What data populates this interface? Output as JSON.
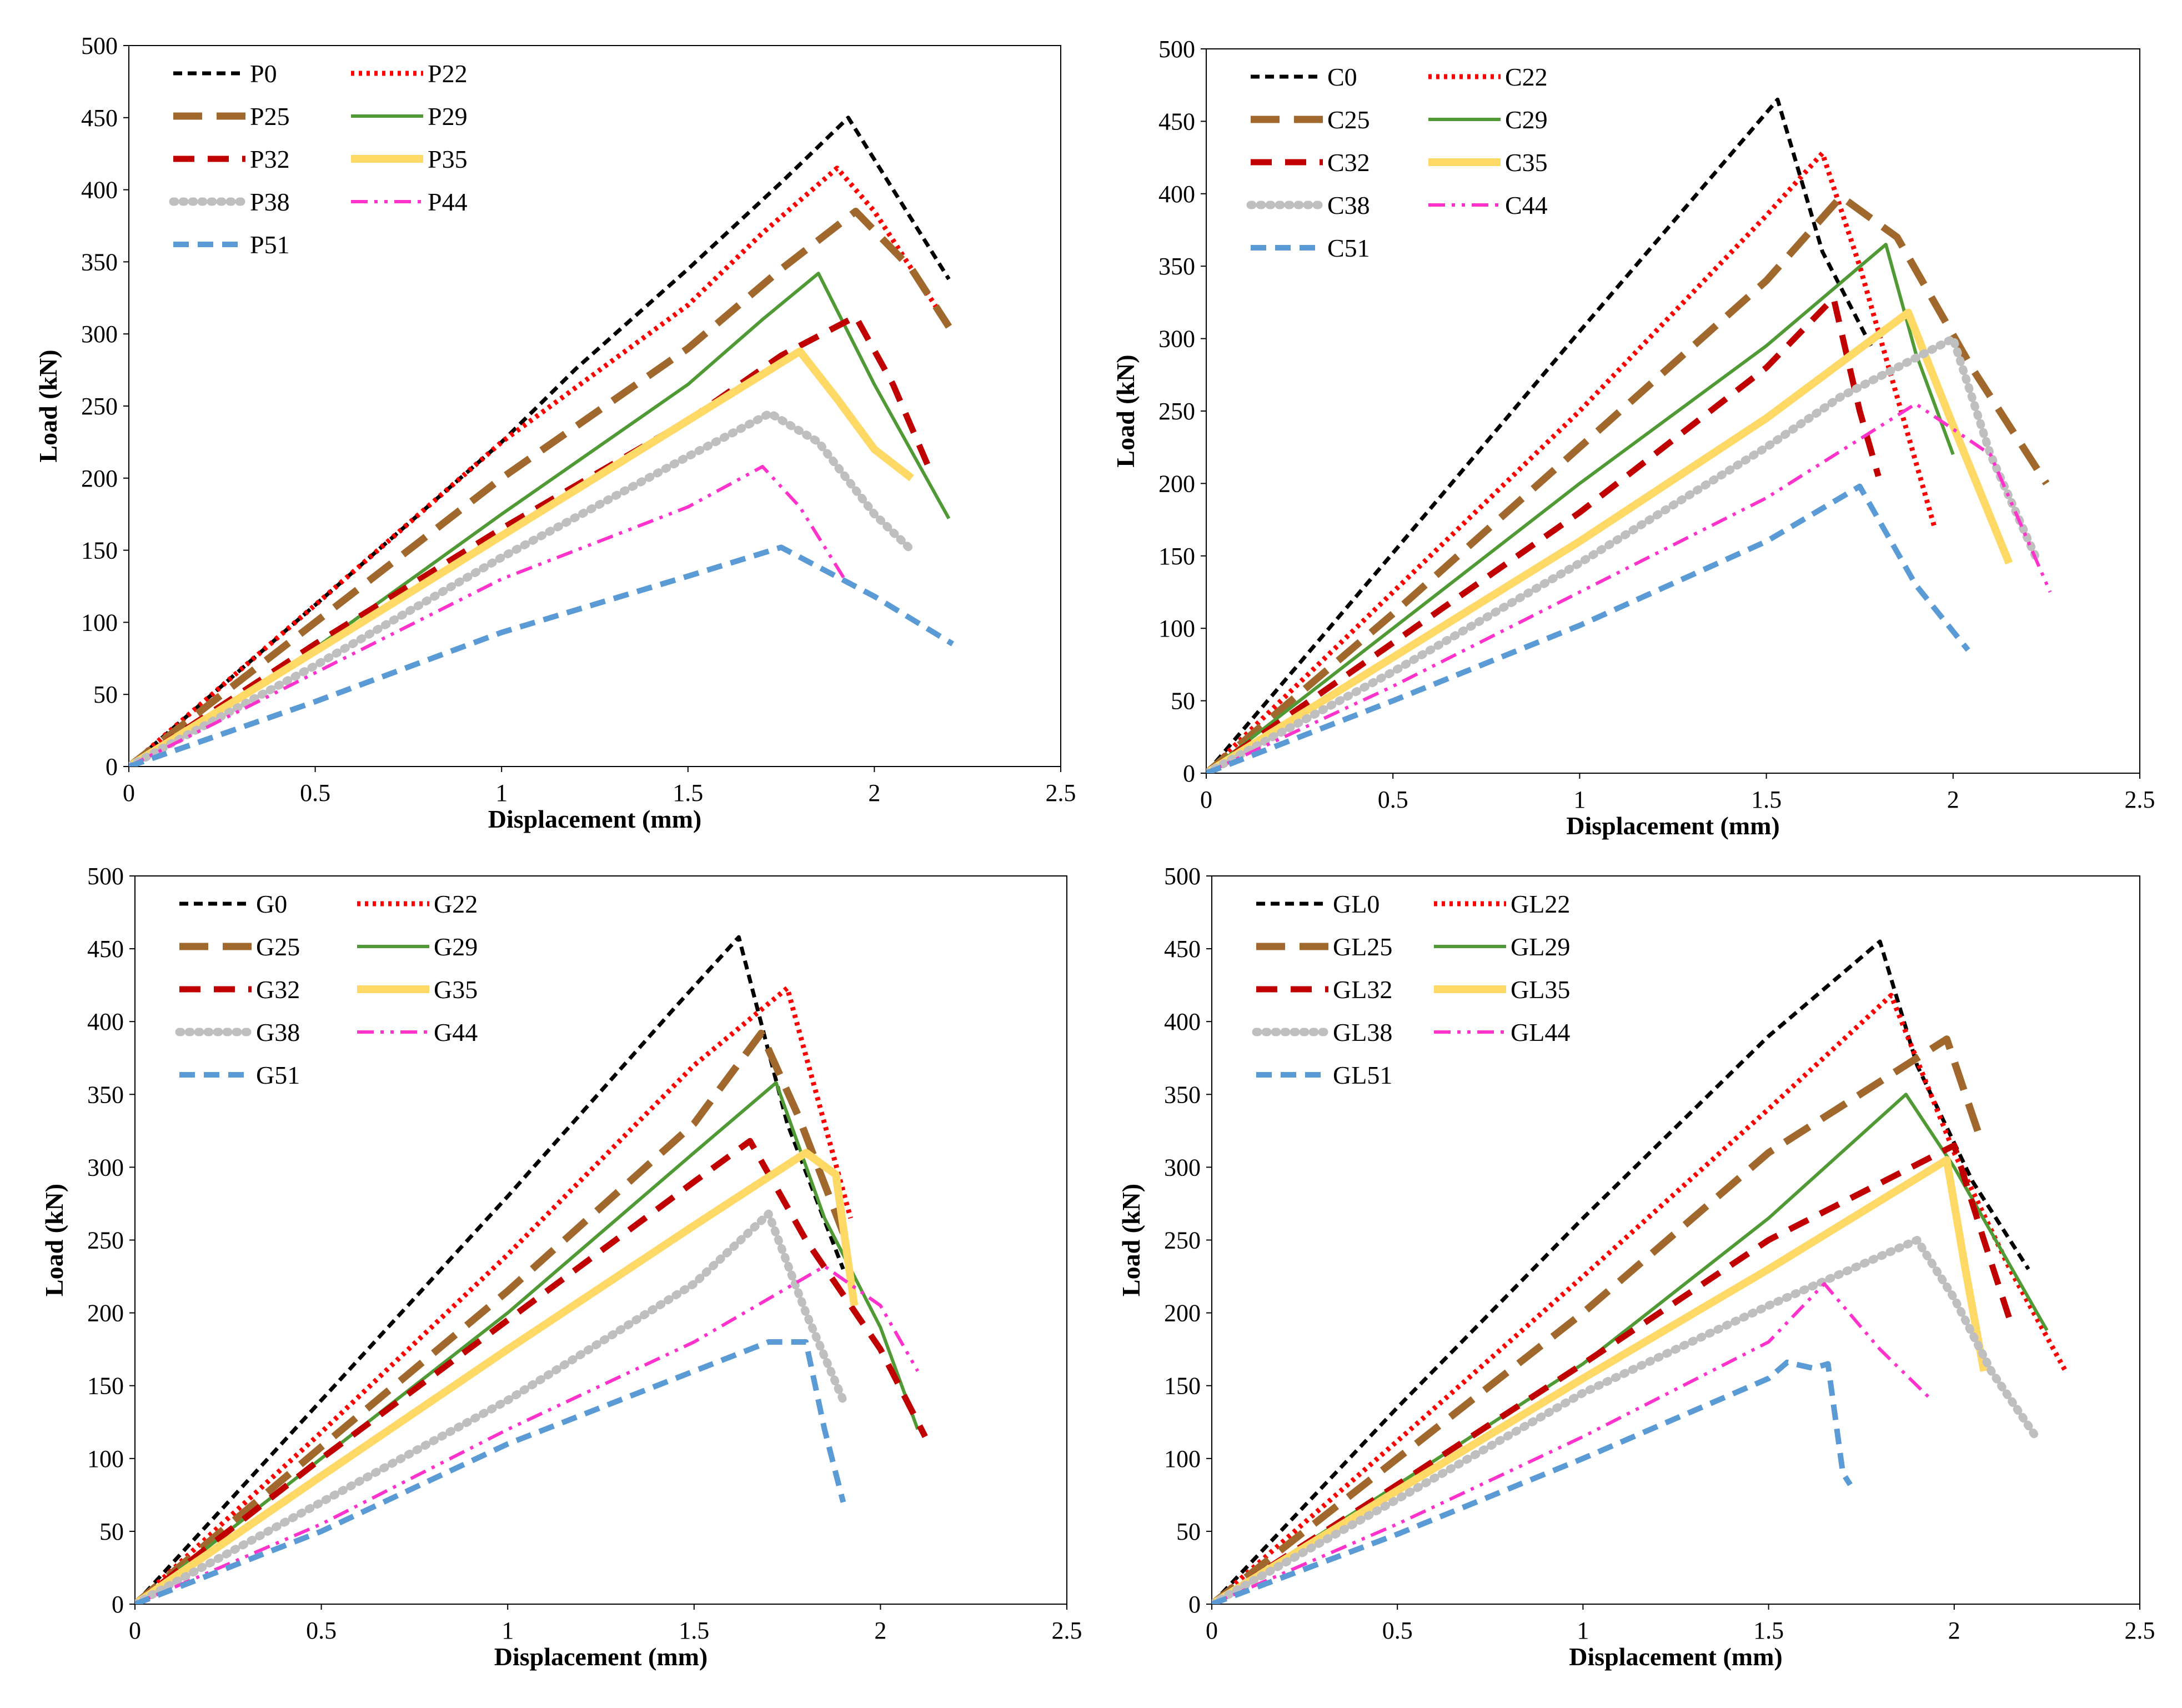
{
  "chart_data": [
    {
      "type": "line",
      "xlabel": "Displacement (mm)",
      "ylabel": "Load (kN)",
      "xlim": [
        0,
        2.5
      ],
      "ylim": [
        0,
        500
      ],
      "xticks": [
        "0",
        "0.5",
        "1",
        "1.5",
        "2",
        "2.5"
      ],
      "yticks": [
        "0",
        "50",
        "100",
        "150",
        "200",
        "250",
        "300",
        "350",
        "400",
        "450",
        "500"
      ],
      "grid": false,
      "legend_position": "top-left",
      "series": [
        {
          "name": "P0",
          "style": "p0",
          "x": [
            0,
            0.5,
            1,
            1.2,
            1.5,
            1.75,
            1.93,
            2.2
          ],
          "y": [
            0,
            112,
            225,
            276,
            345,
            405,
            450,
            338
          ]
        },
        {
          "name": "P22",
          "style": "p22",
          "x": [
            0,
            0.5,
            1,
            1.5,
            1.7,
            1.9,
            2.0,
            2.2
          ],
          "y": [
            0,
            112,
            225,
            320,
            370,
            415,
            385,
            305
          ]
        },
        {
          "name": "P25",
          "style": "p25",
          "x": [
            0,
            0.5,
            1,
            1.5,
            1.75,
            1.95,
            2.1,
            2.2
          ],
          "y": [
            0,
            100,
            200,
            290,
            345,
            385,
            345,
            305
          ]
        },
        {
          "name": "P29",
          "style": "p29",
          "x": [
            0,
            0.5,
            1,
            1.5,
            1.7,
            1.85,
            2.0,
            2.2
          ],
          "y": [
            0,
            82,
            175,
            265,
            310,
            342,
            265,
            172
          ]
        },
        {
          "name": "P32",
          "style": "p32",
          "x": [
            0,
            0.5,
            1,
            1.5,
            1.75,
            1.95,
            2.05,
            2.15
          ],
          "y": [
            0,
            85,
            165,
            240,
            285,
            312,
            265,
            205
          ]
        },
        {
          "name": "P35",
          "style": "p35",
          "x": [
            0,
            0.5,
            1,
            1.5,
            1.8,
            1.9,
            2.0,
            2.1
          ],
          "y": [
            0,
            80,
            160,
            240,
            288,
            255,
            220,
            200
          ]
        },
        {
          "name": "P38",
          "style": "p38",
          "x": [
            0,
            0.5,
            1,
            1.5,
            1.72,
            1.85,
            2.0,
            2.1
          ],
          "y": [
            0,
            70,
            145,
            215,
            245,
            225,
            175,
            150
          ]
        },
        {
          "name": "P44",
          "style": "p44",
          "x": [
            0,
            0.5,
            1,
            1.5,
            1.7,
            1.8,
            1.92
          ],
          "y": [
            0,
            65,
            130,
            180,
            208,
            180,
            130
          ]
        },
        {
          "name": "P51",
          "style": "p51",
          "x": [
            0,
            0.5,
            1,
            1.5,
            1.75,
            2.0,
            2.21
          ],
          "y": [
            0,
            45,
            93,
            132,
            152,
            118,
            85
          ]
        }
      ]
    },
    {
      "type": "line",
      "xlabel": "Displacement (mm)",
      "ylabel": "Load (kN)",
      "xlim": [
        0,
        2.5
      ],
      "ylim": [
        0,
        500
      ],
      "xticks": [
        "0",
        "0.5",
        "1",
        "1.5",
        "2",
        "2.5"
      ],
      "yticks": [
        "0",
        "50",
        "100",
        "150",
        "200",
        "250",
        "300",
        "350",
        "400",
        "450",
        "500"
      ],
      "grid": false,
      "legend_position": "top-left",
      "series": [
        {
          "name": "C0",
          "style": "p0",
          "x": [
            0,
            0.5,
            1,
            1.53,
            1.65,
            1.75,
            1.78
          ],
          "y": [
            0,
            152,
            305,
            465,
            360,
            310,
            295
          ]
        },
        {
          "name": "C22",
          "style": "p22",
          "x": [
            0,
            0.5,
            1,
            1.5,
            1.65,
            1.75,
            1.85,
            1.95
          ],
          "y": [
            0,
            125,
            250,
            385,
            428,
            350,
            260,
            170
          ]
        },
        {
          "name": "C25",
          "style": "p25",
          "x": [
            0,
            0.5,
            1,
            1.5,
            1.7,
            1.85,
            2.05,
            2.25
          ],
          "y": [
            0,
            110,
            225,
            340,
            398,
            370,
            280,
            200
          ]
        },
        {
          "name": "C29",
          "style": "p29",
          "x": [
            0,
            0.5,
            1,
            1.5,
            1.82,
            1.9,
            2.0
          ],
          "y": [
            0,
            100,
            200,
            295,
            365,
            290,
            220
          ]
        },
        {
          "name": "C32",
          "style": "p32",
          "x": [
            0,
            0.5,
            1,
            1.5,
            1.68,
            1.75,
            1.8
          ],
          "y": [
            0,
            90,
            180,
            280,
            328,
            250,
            205
          ]
        },
        {
          "name": "C35",
          "style": "p35",
          "x": [
            0,
            0.5,
            1,
            1.5,
            1.88,
            2.0,
            2.15
          ],
          "y": [
            0,
            80,
            160,
            245,
            318,
            240,
            145
          ]
        },
        {
          "name": "C38",
          "style": "p38",
          "x": [
            0,
            0.5,
            1,
            1.5,
            1.7,
            2.0,
            2.1,
            2.22
          ],
          "y": [
            0,
            70,
            145,
            225,
            260,
            300,
            220,
            150
          ]
        },
        {
          "name": "C44",
          "style": "p44",
          "x": [
            0,
            0.5,
            1,
            1.5,
            1.9,
            2.1,
            2.26
          ],
          "y": [
            0,
            60,
            125,
            190,
            255,
            220,
            125
          ]
        },
        {
          "name": "C51",
          "style": "p51",
          "x": [
            0,
            0.5,
            1,
            1.5,
            1.75,
            1.9,
            2.04
          ],
          "y": [
            0,
            50,
            102,
            160,
            198,
            130,
            85
          ]
        }
      ]
    },
    {
      "type": "line",
      "xlabel": "Displacement (mm)",
      "ylabel": "Load (kN)",
      "xlim": [
        0,
        2.5
      ],
      "ylim": [
        0,
        500
      ],
      "xticks": [
        "0",
        "0.5",
        "1",
        "1.5",
        "2",
        "2.5"
      ],
      "yticks": [
        "0",
        "50",
        "100",
        "150",
        "200",
        "250",
        "300",
        "350",
        "400",
        "450",
        "500"
      ],
      "grid": false,
      "legend_position": "top-left",
      "series": [
        {
          "name": "G0",
          "style": "p0",
          "x": [
            0,
            0.5,
            1,
            1.45,
            1.62,
            1.75,
            1.9
          ],
          "y": [
            0,
            140,
            280,
            410,
            458,
            330,
            230
          ]
        },
        {
          "name": "G22",
          "style": "p22",
          "x": [
            0,
            0.5,
            1,
            1.5,
            1.75,
            1.85,
            1.92
          ],
          "y": [
            0,
            118,
            240,
            370,
            423,
            330,
            265
          ]
        },
        {
          "name": "G25",
          "style": "p25",
          "x": [
            0,
            0.5,
            1,
            1.5,
            1.68,
            1.78,
            1.9
          ],
          "y": [
            0,
            108,
            215,
            330,
            392,
            335,
            255
          ]
        },
        {
          "name": "G29",
          "style": "p29",
          "x": [
            0,
            0.5,
            1,
            1.5,
            1.72,
            1.85,
            2.0,
            2.1
          ],
          "y": [
            0,
            100,
            200,
            310,
            358,
            265,
            190,
            120
          ]
        },
        {
          "name": "G32",
          "style": "p32",
          "x": [
            0,
            0.5,
            1,
            1.5,
            1.65,
            1.8,
            2.0,
            2.12
          ],
          "y": [
            0,
            100,
            195,
            290,
            318,
            250,
            175,
            115
          ]
        },
        {
          "name": "G35",
          "style": "p35",
          "x": [
            0,
            0.5,
            1,
            1.5,
            1.8,
            1.88,
            1.93
          ],
          "y": [
            0,
            88,
            175,
            260,
            310,
            295,
            205
          ]
        },
        {
          "name": "G38",
          "style": "p38",
          "x": [
            0,
            0.5,
            1,
            1.5,
            1.7,
            1.8,
            1.9
          ],
          "y": [
            0,
            70,
            140,
            220,
            268,
            200,
            140
          ]
        },
        {
          "name": "G44",
          "style": "p44",
          "x": [
            0,
            0.5,
            1,
            1.5,
            1.85,
            2.0,
            2.1
          ],
          "y": [
            0,
            55,
            120,
            180,
            232,
            205,
            160
          ]
        },
        {
          "name": "G51",
          "style": "p51",
          "x": [
            0,
            0.5,
            1,
            1.5,
            1.7,
            1.8,
            1.85,
            1.9
          ],
          "y": [
            0,
            50,
            110,
            160,
            180,
            180,
            120,
            70
          ]
        }
      ]
    },
    {
      "type": "line",
      "xlabel": "Displacement (mm)",
      "ylabel": "Load (kN)",
      "xlim": [
        0,
        2.5
      ],
      "ylim": [
        0,
        500
      ],
      "xticks": [
        "0",
        "0.5",
        "1",
        "1.5",
        "2",
        "2.5"
      ],
      "yticks": [
        "0",
        "50",
        "100",
        "150",
        "200",
        "250",
        "300",
        "350",
        "400",
        "450",
        "500"
      ],
      "grid": false,
      "legend_position": "top-left",
      "series": [
        {
          "name": "GL0",
          "style": "p0",
          "x": [
            0,
            0.5,
            1,
            1.5,
            1.8,
            1.9,
            2.05,
            2.2
          ],
          "y": [
            0,
            135,
            265,
            390,
            455,
            370,
            290,
            230
          ]
        },
        {
          "name": "GL22",
          "style": "p22",
          "x": [
            0,
            0.5,
            1,
            1.5,
            1.83,
            2.0,
            2.15,
            2.3
          ],
          "y": [
            0,
            112,
            225,
            340,
            418,
            310,
            230,
            160
          ]
        },
        {
          "name": "GL25",
          "style": "p25",
          "x": [
            0,
            0.5,
            1,
            1.5,
            1.98,
            2.03,
            2.07
          ],
          "y": [
            0,
            100,
            200,
            310,
            388,
            350,
            320
          ]
        },
        {
          "name": "GL29",
          "style": "p29",
          "x": [
            0,
            0.5,
            1,
            1.5,
            1.87,
            2.0,
            2.25
          ],
          "y": [
            0,
            82,
            165,
            265,
            350,
            300,
            188
          ]
        },
        {
          "name": "GL32",
          "style": "p32",
          "x": [
            0,
            0.5,
            1,
            1.5,
            2.0,
            2.08,
            2.15
          ],
          "y": [
            0,
            82,
            165,
            250,
            315,
            250,
            195
          ]
        },
        {
          "name": "GL35",
          "style": "p35",
          "x": [
            0,
            0.5,
            1,
            1.5,
            1.98,
            2.03,
            2.08
          ],
          "y": [
            0,
            78,
            155,
            230,
            305,
            230,
            160
          ]
        },
        {
          "name": "GL38",
          "style": "p38",
          "x": [
            0,
            0.5,
            1,
            1.5,
            1.9,
            2.0,
            2.1,
            2.22
          ],
          "y": [
            0,
            72,
            145,
            205,
            250,
            210,
            160,
            115
          ]
        },
        {
          "name": "GL44",
          "style": "p44",
          "x": [
            0,
            0.5,
            1,
            1.5,
            1.65,
            1.8,
            1.94
          ],
          "y": [
            0,
            55,
            115,
            180,
            220,
            175,
            140
          ]
        },
        {
          "name": "GL51",
          "style": "p51",
          "x": [
            0,
            0.5,
            1,
            1.5,
            1.55,
            1.62,
            1.66,
            1.7,
            1.72
          ],
          "y": [
            0,
            48,
            100,
            155,
            166,
            162,
            165,
            90,
            82
          ]
        }
      ]
    }
  ],
  "series_styles": {
    "p0": {
      "color": "#000000",
      "dash": "16 10",
      "width": 7
    },
    "p22": {
      "color": "#ff0000",
      "dash": "6 8",
      "width": 9
    },
    "p25": {
      "color": "#a0682c",
      "dash": "52 26",
      "width": 13
    },
    "p29": {
      "color": "#4f9a34",
      "dash": "",
      "width": 6
    },
    "p32": {
      "color": "#c00000",
      "dash": "38 24",
      "width": 11
    },
    "p35": {
      "color": "#ffd966",
      "dash": "",
      "width": 14
    },
    "p38": {
      "color": "#bfbfbf",
      "dash": "3 14",
      "width": 15,
      "cap": "round"
    },
    "p44": {
      "color": "#ff33cc",
      "dash": "30 12 6 12 6 12",
      "width": 6
    },
    "p51": {
      "color": "#5b9bd5",
      "dash": "28 16",
      "width": 10
    }
  }
}
